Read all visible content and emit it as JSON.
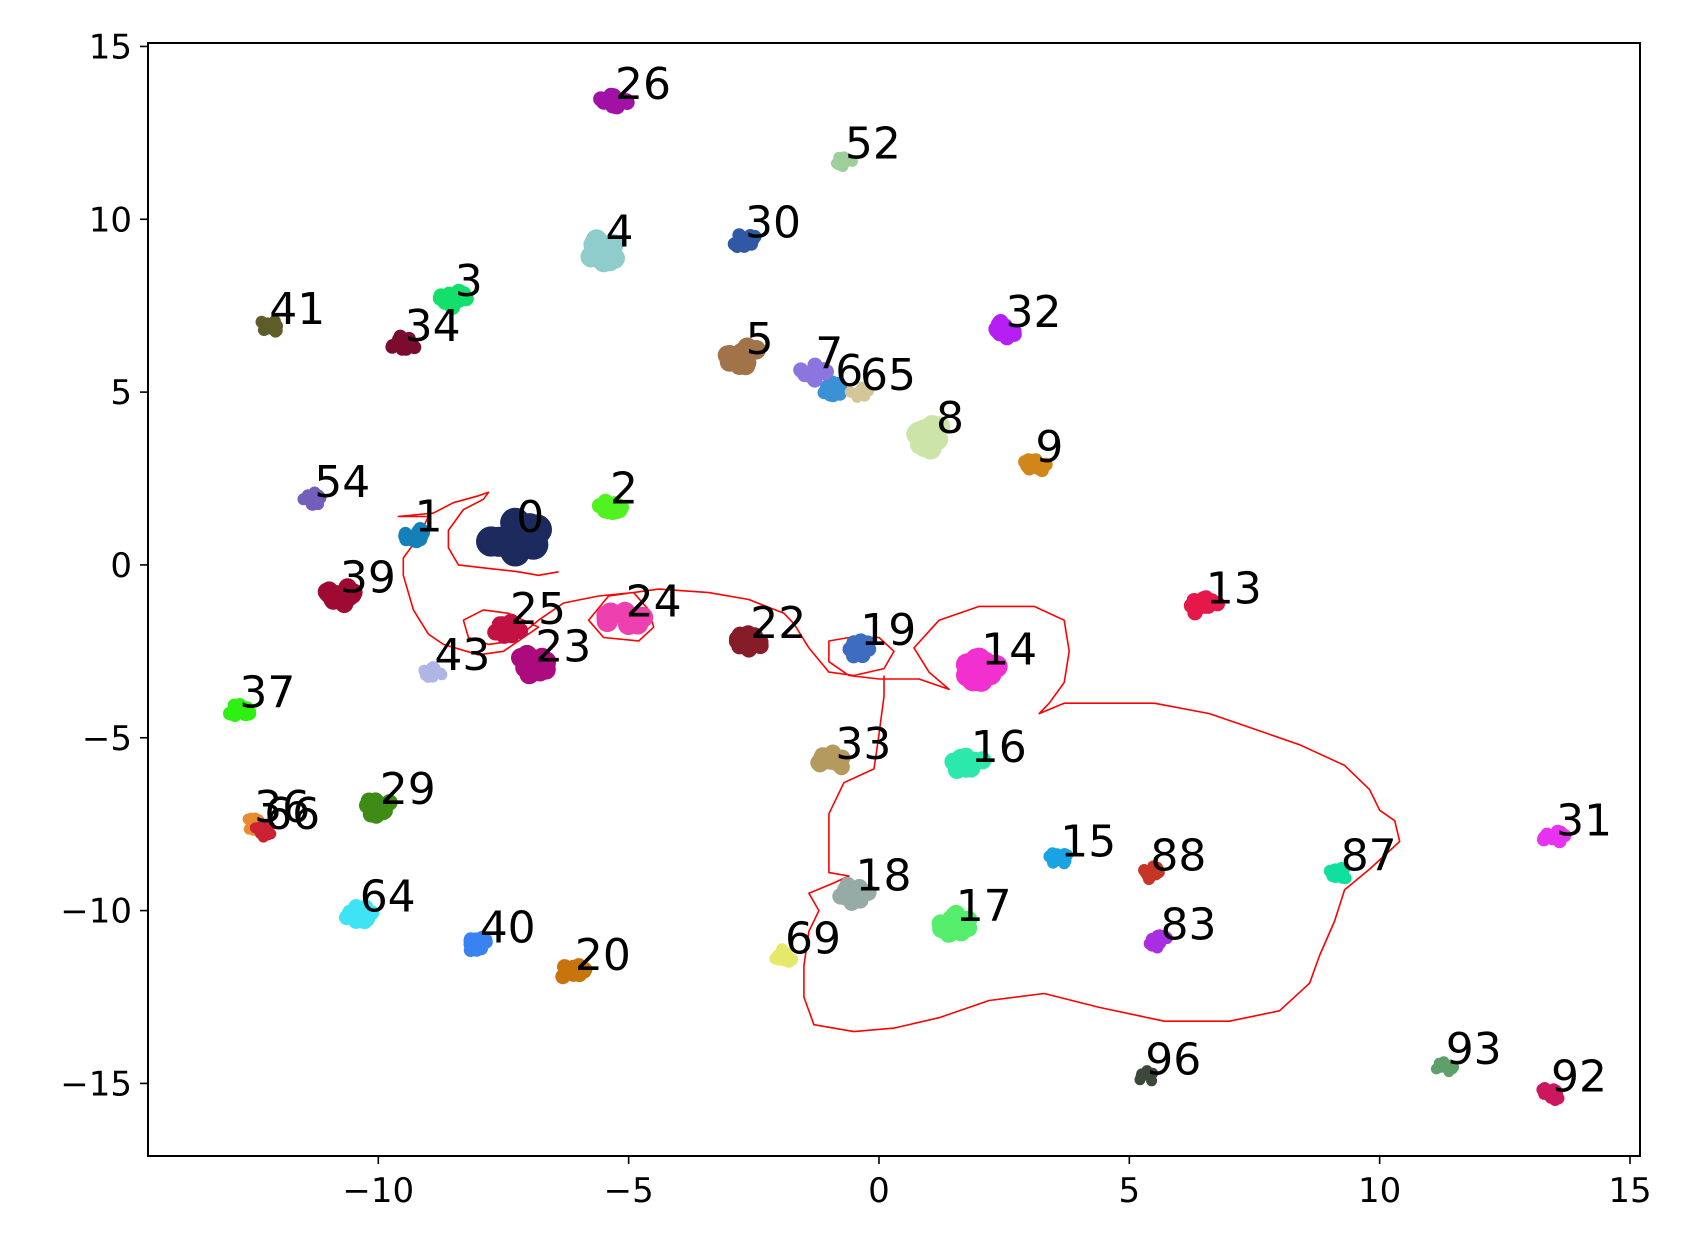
{
  "chart_data": {
    "type": "scatter",
    "title": "",
    "xlabel": "",
    "ylabel": "",
    "xlim": [
      -14.6,
      15.2
    ],
    "ylim": [
      -17.1,
      15.1
    ],
    "x_ticks": [
      {
        "value": -10,
        "label": "−10"
      },
      {
        "value": -5,
        "label": "−5"
      },
      {
        "value": 0,
        "label": "0"
      },
      {
        "value": 5,
        "label": "5"
      },
      {
        "value": 10,
        "label": "10"
      },
      {
        "value": 15,
        "label": "15"
      }
    ],
    "y_ticks": [
      {
        "value": 15,
        "label": "15"
      },
      {
        "value": 10,
        "label": "10"
      },
      {
        "value": 5,
        "label": "5"
      },
      {
        "value": 0,
        "label": "0"
      },
      {
        "value": -5,
        "label": "−5"
      },
      {
        "value": -10,
        "label": "−10"
      },
      {
        "value": -15,
        "label": "−15"
      }
    ],
    "grid": false,
    "legend": "none",
    "clusters": [
      {
        "label": "0",
        "x": -7.3,
        "y": 0.8,
        "size": 1.0,
        "color": "#1c2a5e"
      },
      {
        "label": "1",
        "x": -9.3,
        "y": 0.9,
        "size": 0.45,
        "color": "#1580b7"
      },
      {
        "label": "2",
        "x": -5.4,
        "y": 1.7,
        "size": 0.5,
        "color": "#51f21f"
      },
      {
        "label": "3",
        "x": -8.5,
        "y": 7.7,
        "size": 0.5,
        "color": "#13e06b"
      },
      {
        "label": "4",
        "x": -5.5,
        "y": 9.1,
        "size": 0.7,
        "color": "#8ecdcb"
      },
      {
        "label": "5",
        "x": -2.7,
        "y": 6.0,
        "size": 0.65,
        "color": "#a27249"
      },
      {
        "label": "6",
        "x": -0.9,
        "y": 5.1,
        "size": 0.45,
        "color": "#3b91d6"
      },
      {
        "label": "7",
        "x": -1.3,
        "y": 5.6,
        "size": 0.5,
        "color": "#8d75e0"
      },
      {
        "label": "8",
        "x": 1.1,
        "y": 3.7,
        "size": 0.7,
        "color": "#cde4a9"
      },
      {
        "label": "9",
        "x": 3.1,
        "y": 2.9,
        "size": 0.45,
        "color": "#d08619"
      },
      {
        "label": "13",
        "x": 6.5,
        "y": -1.2,
        "size": 0.5,
        "color": "#e4184a"
      },
      {
        "label": "14",
        "x": 2.0,
        "y": -3.0,
        "size": 0.75,
        "color": "#f22fcf"
      },
      {
        "label": "15",
        "x": 3.6,
        "y": -8.5,
        "size": 0.4,
        "color": "#1aa3e2"
      },
      {
        "label": "16",
        "x": 1.8,
        "y": -5.8,
        "size": 0.6,
        "color": "#2de8ab"
      },
      {
        "label": "17",
        "x": 1.5,
        "y": -10.4,
        "size": 0.6,
        "color": "#55ee6c"
      },
      {
        "label": "18",
        "x": -0.5,
        "y": -9.5,
        "size": 0.55,
        "color": "#96aaa6"
      },
      {
        "label": "19",
        "x": -0.4,
        "y": -2.4,
        "size": 0.5,
        "color": "#3d6cc1"
      },
      {
        "label": "20",
        "x": -6.1,
        "y": -11.8,
        "size": 0.5,
        "color": "#c7740f"
      },
      {
        "label": "22",
        "x": -2.6,
        "y": -2.2,
        "size": 0.55,
        "color": "#861c27"
      },
      {
        "label": "23",
        "x": -6.9,
        "y": -2.9,
        "size": 0.65,
        "color": "#ab0b7c"
      },
      {
        "label": "24",
        "x": -5.1,
        "y": -1.6,
        "size": 0.7,
        "color": "#ee41b0"
      },
      {
        "label": "25",
        "x": -7.4,
        "y": -1.8,
        "size": 0.55,
        "color": "#c31143"
      },
      {
        "label": "26",
        "x": -5.3,
        "y": 13.4,
        "size": 0.5,
        "color": "#a211a6"
      },
      {
        "label": "29",
        "x": -10.0,
        "y": -7.0,
        "size": 0.55,
        "color": "#3e8c15"
      },
      {
        "label": "30",
        "x": -2.7,
        "y": 9.4,
        "size": 0.45,
        "color": "#2f59a4"
      },
      {
        "label": "31",
        "x": 13.5,
        "y": -7.9,
        "size": 0.45,
        "color": "#e733ef"
      },
      {
        "label": "32",
        "x": 2.5,
        "y": 6.8,
        "size": 0.5,
        "color": "#b51ef4"
      },
      {
        "label": "33",
        "x": -0.9,
        "y": -5.7,
        "size": 0.55,
        "color": "#b59a5e"
      },
      {
        "label": "34",
        "x": -9.5,
        "y": 6.4,
        "size": 0.45,
        "color": "#7a0d2d"
      },
      {
        "label": "36",
        "x": -12.5,
        "y": -7.5,
        "size": 0.3,
        "color": "#e88b2e"
      },
      {
        "label": "37",
        "x": -12.8,
        "y": -4.2,
        "size": 0.45,
        "color": "#2ef012"
      },
      {
        "label": "39",
        "x": -10.8,
        "y": -0.9,
        "size": 0.6,
        "color": "#9e0a33"
      },
      {
        "label": "40",
        "x": -8.0,
        "y": -11.0,
        "size": 0.45,
        "color": "#3a82f2"
      },
      {
        "label": "41",
        "x": -12.2,
        "y": 6.9,
        "size": 0.4,
        "color": "#5e5c28"
      },
      {
        "label": "43",
        "x": -8.9,
        "y": -3.1,
        "size": 0.35,
        "color": "#afb6e6"
      },
      {
        "label": "52",
        "x": -0.7,
        "y": 11.7,
        "size": 0.35,
        "color": "#9ecf9b"
      },
      {
        "label": "54",
        "x": -11.3,
        "y": 1.9,
        "size": 0.4,
        "color": "#735fba"
      },
      {
        "label": "64",
        "x": -10.4,
        "y": -10.1,
        "size": 0.5,
        "color": "#3fe4f4"
      },
      {
        "label": "65",
        "x": -0.4,
        "y": 5.0,
        "size": 0.3,
        "color": "#d3c79a"
      },
      {
        "label": "66",
        "x": -12.3,
        "y": -7.7,
        "size": 0.3,
        "color": "#cc2233"
      },
      {
        "label": "69",
        "x": -1.9,
        "y": -11.3,
        "size": 0.4,
        "color": "#e6e86c"
      },
      {
        "label": "83",
        "x": 5.6,
        "y": -10.9,
        "size": 0.4,
        "color": "#a92ee3"
      },
      {
        "label": "87",
        "x": 9.2,
        "y": -8.9,
        "size": 0.4,
        "color": "#10df9e"
      },
      {
        "label": "88",
        "x": 5.4,
        "y": -8.9,
        "size": 0.4,
        "color": "#c53528"
      },
      {
        "label": "92",
        "x": 13.4,
        "y": -15.3,
        "size": 0.4,
        "color": "#cd1660"
      },
      {
        "label": "93",
        "x": 11.3,
        "y": -14.5,
        "size": 0.35,
        "color": "#5fa06a"
      },
      {
        "label": "96",
        "x": 5.3,
        "y": -14.8,
        "size": 0.35,
        "color": "#3c4838"
      }
    ],
    "trajectory": {
      "color": "#ff0000",
      "points": [
        [
          -6.4,
          -0.2
        ],
        [
          -6.8,
          -0.3
        ],
        [
          -7.2,
          -0.2
        ],
        [
          -7.8,
          -0.1
        ],
        [
          -8.4,
          0.0
        ],
        [
          -8.6,
          0.5
        ],
        [
          -8.6,
          1.0
        ],
        [
          -8.3,
          1.6
        ],
        [
          -7.9,
          1.9
        ],
        [
          -7.8,
          2.1
        ],
        [
          -8.0,
          2.0
        ],
        [
          -8.5,
          1.8
        ],
        [
          -8.9,
          1.5
        ],
        [
          -9.6,
          1.4
        ],
        [
          -9.0,
          1.4
        ],
        [
          -9.2,
          0.8
        ],
        [
          -9.5,
          0.2
        ],
        [
          -9.5,
          -0.3
        ],
        [
          -9.3,
          -1.3
        ],
        [
          -9.0,
          -2.0
        ],
        [
          -8.7,
          -2.3
        ],
        [
          -8.0,
          -2.6
        ],
        [
          -7.5,
          -2.5
        ],
        [
          -7.1,
          -2.1
        ],
        [
          -6.8,
          -1.8
        ],
        [
          -7.4,
          -1.4
        ],
        [
          -7.9,
          -1.3
        ],
        [
          -8.3,
          -1.6
        ],
        [
          -8.2,
          -2.1
        ],
        [
          -7.8,
          -2.3
        ],
        [
          -7.3,
          -2.2
        ],
        [
          -6.8,
          -1.6
        ],
        [
          -6.3,
          -1.1
        ],
        [
          -5.6,
          -0.9
        ],
        [
          -4.9,
          -0.8
        ],
        [
          -4.6,
          -1.3
        ],
        [
          -4.5,
          -1.8
        ],
        [
          -4.8,
          -2.2
        ],
        [
          -5.5,
          -2.1
        ],
        [
          -5.8,
          -1.6
        ],
        [
          -5.4,
          -0.9
        ],
        [
          -4.4,
          -0.7
        ],
        [
          -3.4,
          -0.8
        ],
        [
          -2.6,
          -1.0
        ],
        [
          -1.9,
          -1.4
        ],
        [
          -1.7,
          -1.7
        ],
        [
          -1.4,
          -2.4
        ],
        [
          -1.0,
          -3.1
        ],
        [
          -0.5,
          -3.2
        ],
        [
          0.1,
          -3.0
        ],
        [
          0.3,
          -2.5
        ],
        [
          0.0,
          -2.1
        ],
        [
          -0.6,
          -2.1
        ],
        [
          -1.0,
          -2.2
        ],
        [
          -1.0,
          -2.8
        ],
        [
          -0.6,
          -3.2
        ],
        [
          0.0,
          -3.3
        ],
        [
          0.8,
          -3.3
        ],
        [
          1.4,
          -3.6
        ],
        [
          1.0,
          -3.1
        ],
        [
          0.7,
          -2.4
        ],
        [
          1.2,
          -1.6
        ],
        [
          2.0,
          -1.2
        ],
        [
          3.1,
          -1.2
        ],
        [
          3.7,
          -1.6
        ],
        [
          3.8,
          -2.5
        ],
        [
          3.7,
          -3.4
        ],
        [
          3.4,
          -4.0
        ],
        [
          3.2,
          -4.3
        ],
        [
          3.7,
          -4.0
        ],
        [
          4.5,
          -4.0
        ],
        [
          5.5,
          -4.0
        ],
        [
          6.6,
          -4.3
        ],
        [
          7.4,
          -4.7
        ],
        [
          8.4,
          -5.2
        ],
        [
          9.3,
          -5.8
        ],
        [
          9.8,
          -6.5
        ],
        [
          10.0,
          -7.1
        ],
        [
          10.3,
          -7.4
        ],
        [
          10.4,
          -8.0
        ],
        [
          9.8,
          -8.8
        ],
        [
          9.3,
          -9.4
        ],
        [
          9.1,
          -10.3
        ],
        [
          8.8,
          -11.3
        ],
        [
          8.6,
          -12.1
        ],
        [
          8.0,
          -12.9
        ],
        [
          7.0,
          -13.2
        ],
        [
          5.7,
          -13.2
        ],
        [
          4.4,
          -12.8
        ],
        [
          3.3,
          -12.4
        ],
        [
          2.2,
          -12.6
        ],
        [
          1.2,
          -13.1
        ],
        [
          0.3,
          -13.4
        ],
        [
          -0.5,
          -13.5
        ],
        [
          -1.3,
          -13.3
        ],
        [
          -1.5,
          -12.5
        ],
        [
          -1.5,
          -11.6
        ],
        [
          -1.4,
          -10.6
        ],
        [
          -1.2,
          -10.0
        ],
        [
          -1.4,
          -9.5
        ],
        [
          -0.9,
          -9.2
        ],
        [
          -0.6,
          -9.0
        ],
        [
          -1.0,
          -8.9
        ],
        [
          -1.0,
          -8.5
        ],
        [
          -1.0,
          -7.8
        ],
        [
          -1.0,
          -7.2
        ],
        [
          -0.7,
          -6.3
        ],
        [
          -0.1,
          -5.9
        ],
        [
          0.0,
          -4.9
        ],
        [
          0.1,
          -3.8
        ],
        [
          0.1,
          -3.2
        ]
      ]
    }
  }
}
